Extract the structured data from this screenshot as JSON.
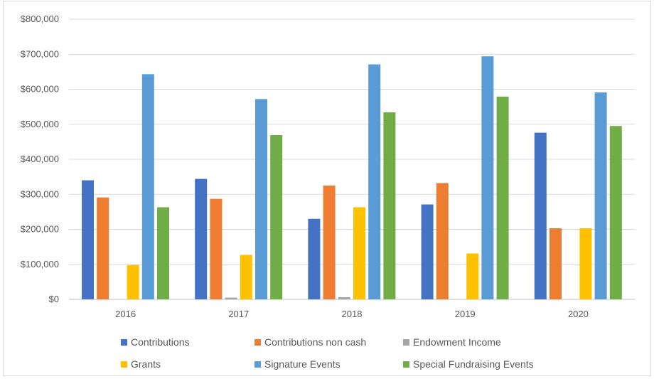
{
  "chart_data": {
    "type": "bar",
    "categories": [
      "2016",
      "2017",
      "2018",
      "2019",
      "2020"
    ],
    "series": [
      {
        "name": "Contributions",
        "color": "#4472C4",
        "values": [
          340000,
          344000,
          230000,
          271000,
          476000
        ]
      },
      {
        "name": "Contributions non cash",
        "color": "#ED7D31",
        "values": [
          291000,
          287000,
          325000,
          332000,
          203000
        ]
      },
      {
        "name": "Endowment Income",
        "color": "#A5A5A5",
        "values": [
          0,
          5000,
          6000,
          0,
          0
        ]
      },
      {
        "name": "Grants",
        "color": "#FFC000",
        "values": [
          98000,
          127000,
          263000,
          131000,
          203000
        ]
      },
      {
        "name": "Signature Events",
        "color": "#5B9BD5",
        "values": [
          643000,
          572000,
          671000,
          694000,
          591000
        ]
      },
      {
        "name": "Special Fundraising Events",
        "color": "#70AD47",
        "values": [
          263000,
          469000,
          534000,
          579000,
          495000
        ]
      }
    ],
    "ylim": [
      0,
      800000
    ],
    "yticks": [
      "$0",
      "$100,000",
      "$200,000",
      "$300,000",
      "$400,000",
      "$500,000",
      "$600,000",
      "$700,000",
      "$800,000"
    ],
    "grid": true,
    "legend_position": "bottom"
  }
}
